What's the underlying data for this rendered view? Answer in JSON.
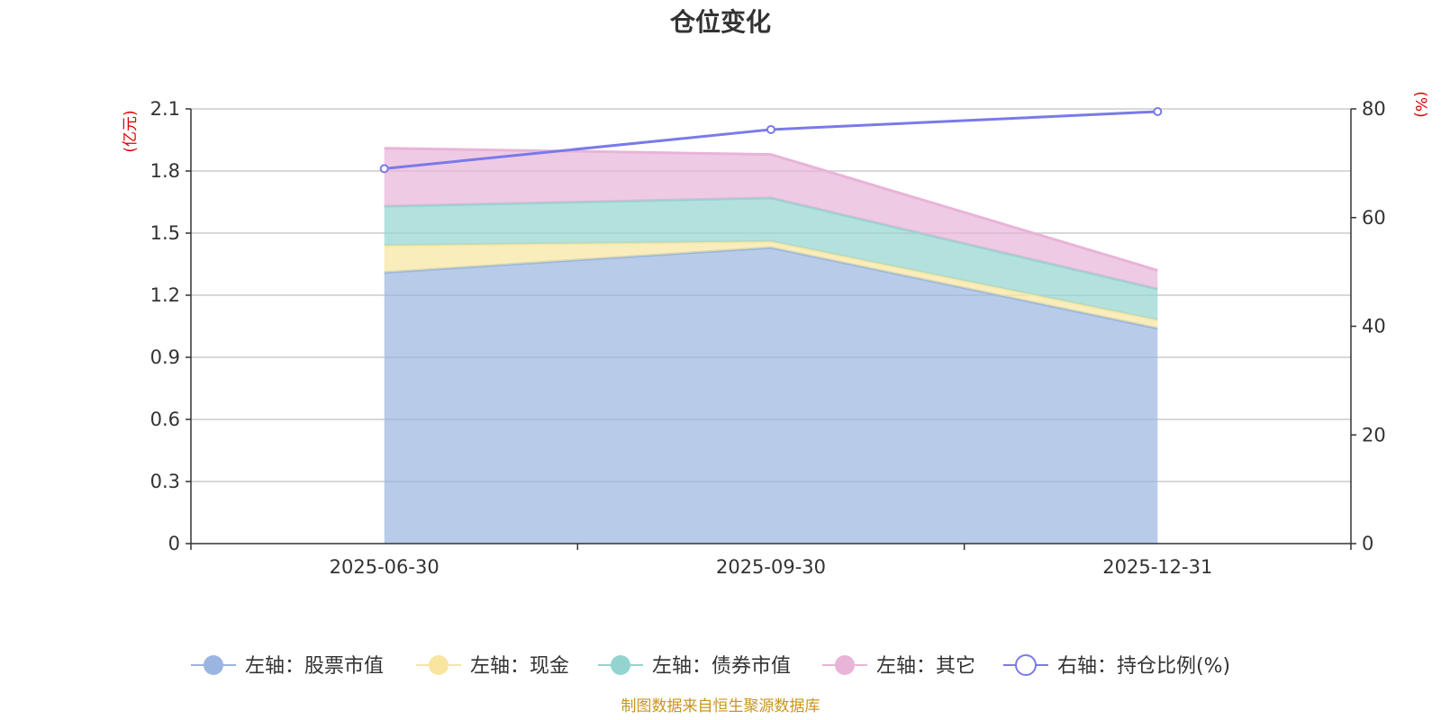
{
  "chart_data": {
    "type": "area",
    "title": "仓位变化",
    "categories": [
      "2025-06-30",
      "2025-09-30",
      "2025-12-31"
    ],
    "stacked": true,
    "left_axis": {
      "unit": "(亿元)",
      "min": 0,
      "max": 2.1,
      "ticks": [
        "0",
        "0.3",
        "0.6",
        "0.9",
        "1.2",
        "1.5",
        "1.8",
        "2.1"
      ]
    },
    "right_axis": {
      "unit": "(%)",
      "min": 0,
      "max": 80,
      "ticks": [
        "0",
        "20",
        "40",
        "60",
        "80"
      ]
    },
    "grid": true,
    "legend_position": "bottom",
    "series": [
      {
        "name": "左轴：股票市值",
        "axis": "left",
        "type": "area",
        "color": "#9ab6e0",
        "values": [
          1.31,
          1.43,
          1.04
        ]
      },
      {
        "name": "左轴：现金",
        "axis": "left",
        "type": "area",
        "color": "#f7e5a0",
        "values": [
          0.13,
          0.03,
          0.04
        ]
      },
      {
        "name": "左轴：债券市值",
        "axis": "left",
        "type": "area",
        "color": "#93d4d0",
        "values": [
          0.19,
          0.21,
          0.15
        ]
      },
      {
        "name": "左轴：其它",
        "axis": "left",
        "type": "area",
        "color": "#e8b4d8",
        "values": [
          0.28,
          0.21,
          0.09
        ]
      },
      {
        "name": "右轴：持仓比例(%)",
        "axis": "right",
        "type": "line",
        "color": "#7a7ae8",
        "values": [
          69.0,
          76.2,
          79.5
        ]
      }
    ]
  },
  "footer": {
    "source": "制图数据来自恒生聚源数据库"
  }
}
